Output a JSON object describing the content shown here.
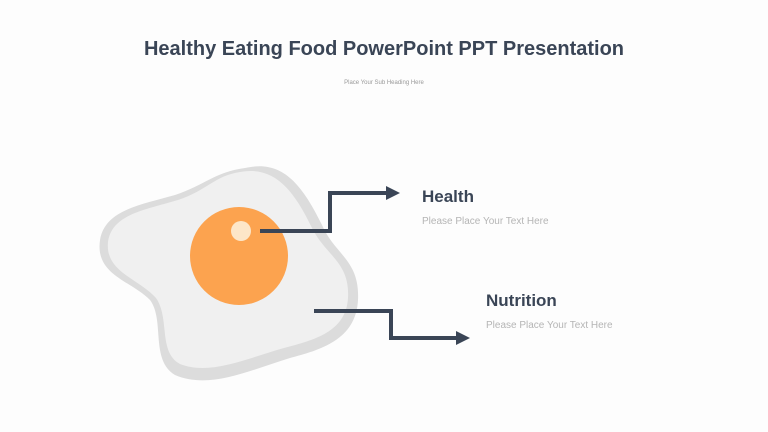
{
  "header": {
    "title": "Healthy Eating Food PowerPoint PPT Presentation",
    "subtitle": "Place Your Sub Heading Here"
  },
  "items": [
    {
      "label": "Health",
      "text": "Please Place Your Text Here"
    },
    {
      "label": "Nutrition",
      "text": "Please Place Your Text Here"
    }
  ]
}
